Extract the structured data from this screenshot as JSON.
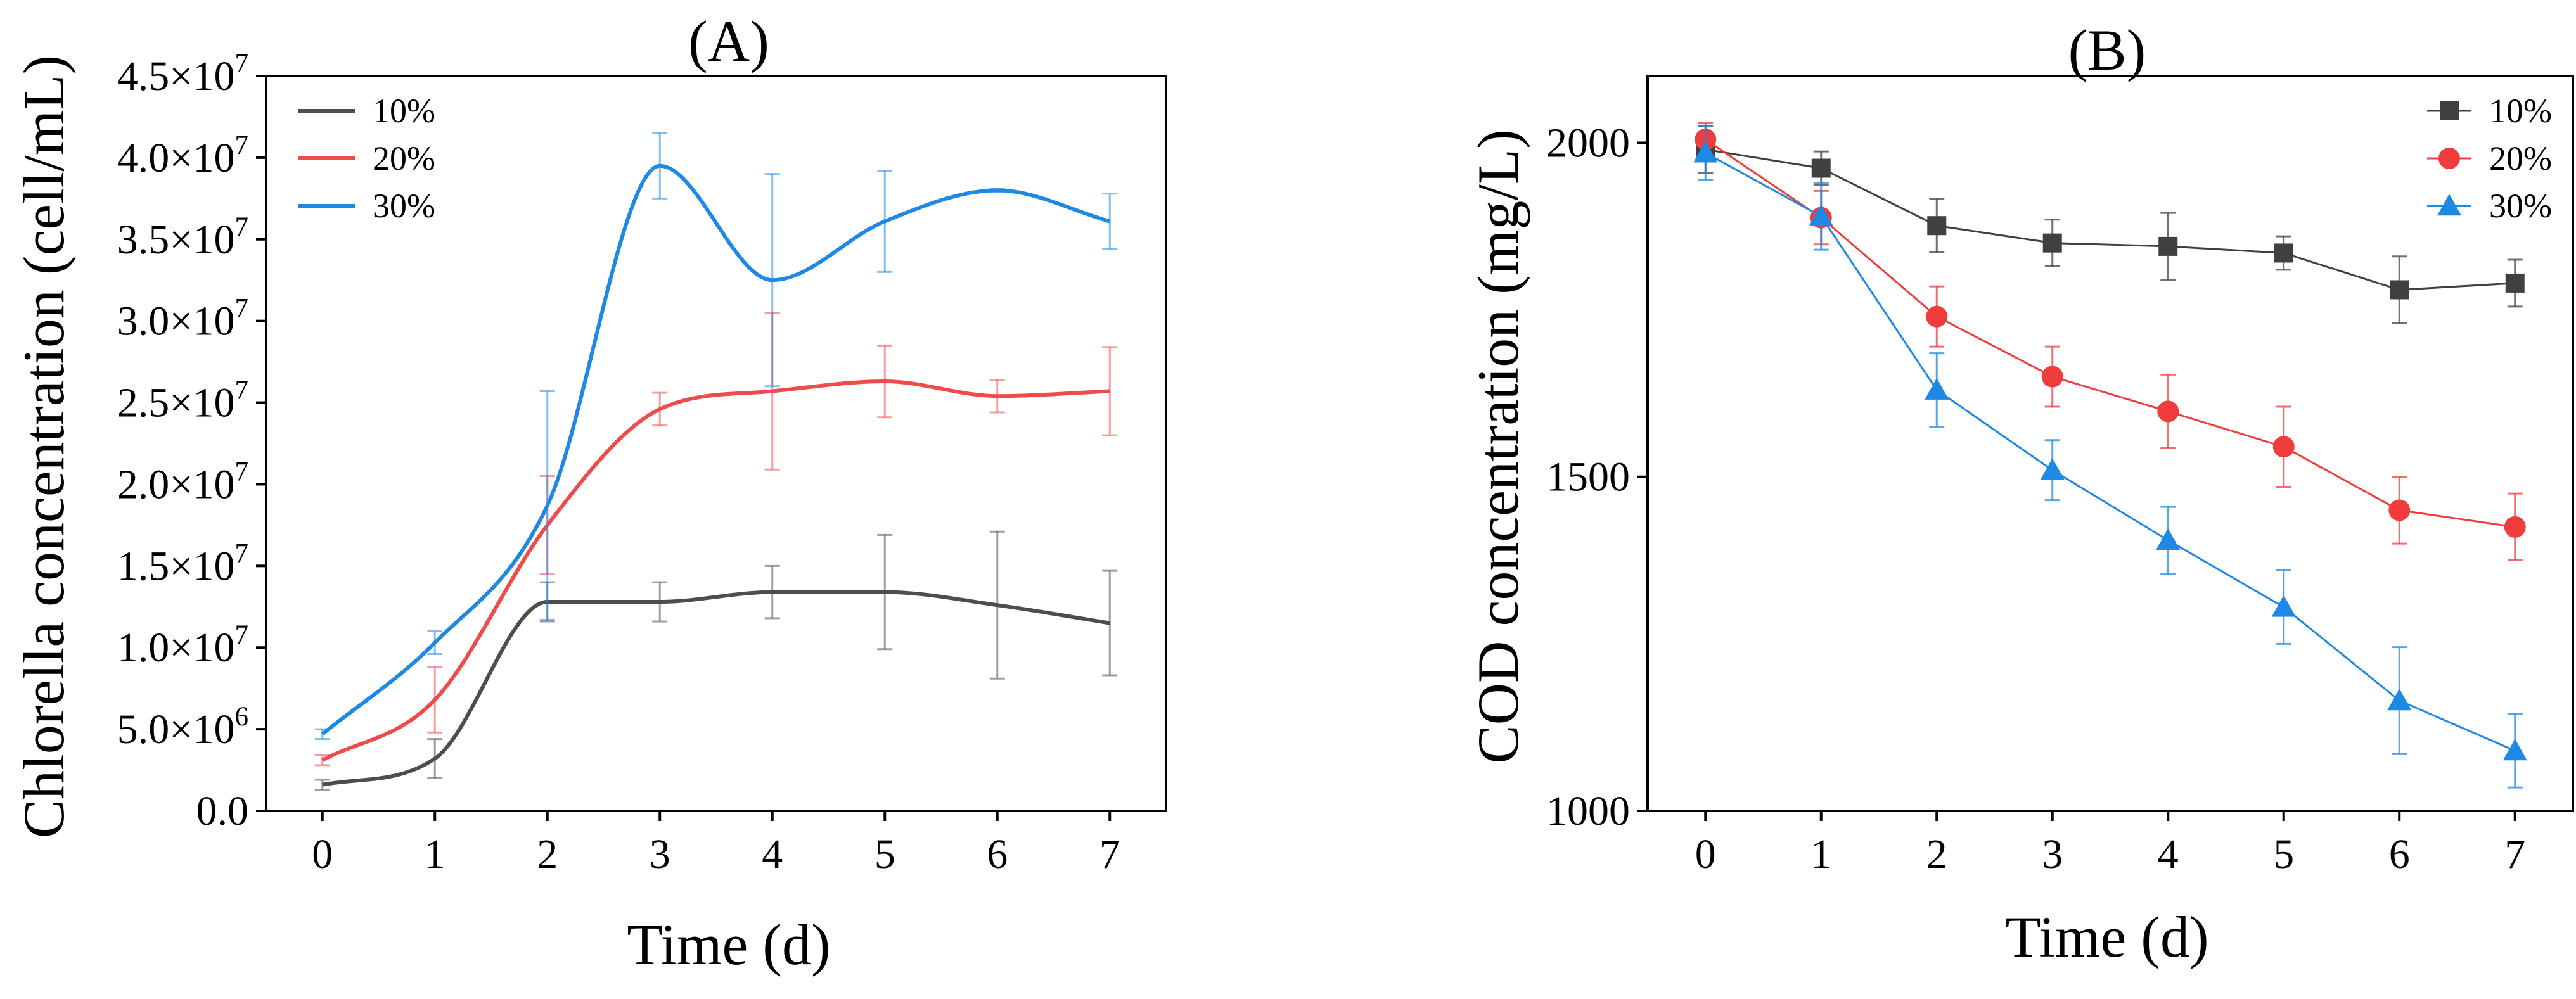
{
  "figure": {
    "panels": [
      "A",
      "B"
    ]
  },
  "chart_data": [
    {
      "type": "line",
      "panel": "A",
      "title": "(A)",
      "xlabel": "Time (d)",
      "ylabel": "Chlorella concentration (cell/mL)",
      "x": [
        0,
        1,
        2,
        3,
        4,
        5,
        6,
        7
      ],
      "xlim": [
        -0.5,
        7.5
      ],
      "ylim": [
        0,
        45000000
      ],
      "xticks": [
        0,
        1,
        2,
        3,
        4,
        5,
        6,
        7
      ],
      "yticks": [
        0,
        5000000,
        10000000,
        15000000,
        20000000,
        25000000,
        30000000,
        35000000,
        40000000,
        45000000
      ],
      "ytick_labels": [
        {
          "mantissa": "0.0",
          "exponent": ""
        },
        {
          "mantissa": "5.0×10",
          "exponent": "6"
        },
        {
          "mantissa": "1.0×10",
          "exponent": "7"
        },
        {
          "mantissa": "1.5×10",
          "exponent": "7"
        },
        {
          "mantissa": "2.0×10",
          "exponent": "7"
        },
        {
          "mantissa": "2.5×10",
          "exponent": "7"
        },
        {
          "mantissa": "3.0×10",
          "exponent": "7"
        },
        {
          "mantissa": "3.5×10",
          "exponent": "7"
        },
        {
          "mantissa": "4.0×10",
          "exponent": "7"
        },
        {
          "mantissa": "4.5×10",
          "exponent": "7"
        }
      ],
      "smooth": true,
      "markers": false,
      "legend_position": "top-left",
      "series": [
        {
          "name": "10%",
          "color": "#4d4d4d",
          "values": [
            1600000,
            3200000,
            12800000,
            12800000,
            13400000,
            13400000,
            12600000,
            11500000
          ],
          "errors": [
            300000,
            1200000,
            1200000,
            1200000,
            1600000,
            3500000,
            4500000,
            3200000
          ]
        },
        {
          "name": "20%",
          "color": "#f04b4b",
          "values": [
            3100000,
            6800000,
            17500000,
            24600000,
            25700000,
            26300000,
            25400000,
            25700000
          ],
          "errors": [
            300000,
            2000000,
            3000000,
            1000000,
            4800000,
            2200000,
            1000000,
            2700000
          ]
        },
        {
          "name": "30%",
          "color": "#1e88e5",
          "values": [
            4700000,
            10300000,
            18700000,
            39500000,
            32500000,
            36100000,
            38000000,
            36100000
          ],
          "errors": [
            300000,
            700000,
            7000000,
            2000000,
            6500000,
            3100000,
            100000,
            1700000
          ]
        }
      ]
    },
    {
      "type": "line",
      "panel": "B",
      "title": "(B)",
      "xlabel": "Time (d)",
      "ylabel": "COD concentration (mg/L)",
      "x": [
        0,
        1,
        2,
        3,
        4,
        5,
        6,
        7
      ],
      "xlim": [
        -0.5,
        7.5
      ],
      "ylim": [
        1000,
        2100
      ],
      "xticks": [
        0,
        1,
        2,
        3,
        4,
        5,
        6,
        7
      ],
      "yticks": [
        1000,
        1500,
        2000
      ],
      "ytick_labels": [
        {
          "mantissa": "1000",
          "exponent": ""
        },
        {
          "mantissa": "1500",
          "exponent": ""
        },
        {
          "mantissa": "2000",
          "exponent": ""
        }
      ],
      "smooth": false,
      "markers": true,
      "legend_position": "top-right",
      "series": [
        {
          "name": "10%",
          "color": "#404040",
          "marker": "square",
          "values": [
            1990,
            1962,
            1876,
            1850,
            1845,
            1835,
            1780,
            1790
          ],
          "errors": [
            35,
            25,
            40,
            35,
            50,
            25,
            50,
            35
          ]
        },
        {
          "name": "20%",
          "color": "#f03c3c",
          "marker": "circle",
          "values": [
            2005,
            1888,
            1740,
            1650,
            1598,
            1545,
            1450,
            1425
          ],
          "errors": [
            25,
            40,
            45,
            45,
            55,
            60,
            50,
            50
          ]
        },
        {
          "name": "30%",
          "color": "#1e88e5",
          "marker": "triangle",
          "values": [
            1985,
            1890,
            1630,
            1510,
            1405,
            1305,
            1165,
            1090
          ],
          "errors": [
            40,
            50,
            55,
            45,
            50,
            55,
            80,
            55
          ]
        }
      ]
    }
  ]
}
